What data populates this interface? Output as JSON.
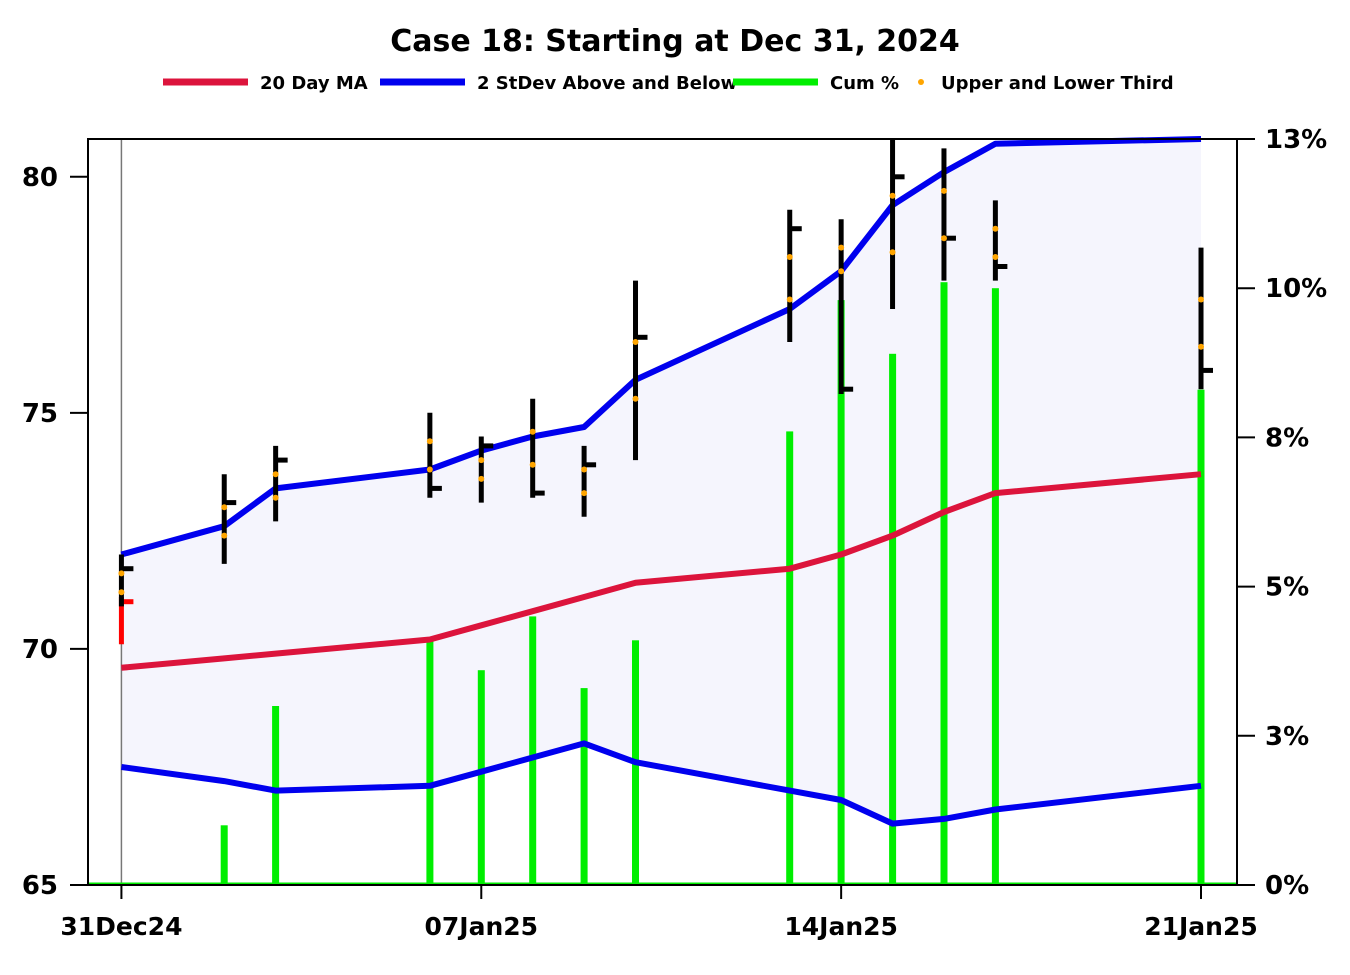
{
  "chart_data": {
    "type": "line",
    "title": "Case 18:  Starting at Dec 31, 2024",
    "legend": {
      "placement": "top-center",
      "entries": [
        {
          "key": "ma",
          "label": "20 Day MA",
          "color": "#dc143c",
          "kind": "line"
        },
        {
          "key": "band",
          "label": "2 StDev Above and Below",
          "color": "#0000ee",
          "kind": "line"
        },
        {
          "key": "cum",
          "label": "Cum %",
          "color": "#00ee00",
          "kind": "line"
        },
        {
          "key": "thirds",
          "label": "Upper and Lower Third",
          "color": "#ffa500",
          "kind": "dot"
        }
      ]
    },
    "x_ticks": [
      {
        "day": 0,
        "label": "31Dec24"
      },
      {
        "day": 7,
        "label": "07Jan25"
      },
      {
        "day": 14,
        "label": "14Jan25"
      },
      {
        "day": 21,
        "label": "21Jan25"
      }
    ],
    "x_range": [
      -0.65,
      21.7
    ],
    "y_left": {
      "range": [
        65,
        80.8
      ],
      "ticks": [
        "65",
        "70",
        "75",
        "80"
      ]
    },
    "y_right": {
      "range": [
        0,
        12.5
      ],
      "ticks": [
        "0%",
        "3%",
        "5%",
        "8%",
        "10%",
        "13%"
      ],
      "tick_values": [
        0,
        2.5,
        5,
        7.5,
        10,
        12.5
      ]
    },
    "grid": false,
    "start_marker_day": 0,
    "series": [
      {
        "name": "20 Day MA",
        "key": "ma",
        "color": "#dc143c",
        "x": [
          0,
          2,
          3,
          6,
          7,
          8,
          9,
          10,
          13,
          14,
          15,
          16,
          17,
          21
        ],
        "values": [
          69.6,
          69.8,
          69.9,
          70.2,
          70.5,
          70.8,
          71.1,
          71.4,
          71.7,
          72.0,
          72.4,
          72.9,
          73.3,
          73.7
        ]
      },
      {
        "name": "2 StDev Above and Below",
        "key": "upper",
        "color": "#0000ee",
        "x": [
          0,
          2,
          3,
          6,
          7,
          8,
          9,
          10,
          13,
          14,
          15,
          16,
          17,
          21
        ],
        "values": [
          72.0,
          72.6,
          73.4,
          73.8,
          74.2,
          74.5,
          74.7,
          75.7,
          77.2,
          78.0,
          79.4,
          80.1,
          80.7,
          80.8
        ]
      },
      {
        "name": "2 StDev Above and Below",
        "key": "lower",
        "color": "#0000ee",
        "x": [
          0,
          2,
          3,
          6,
          7,
          8,
          9,
          10,
          13,
          14,
          15,
          16,
          17,
          21
        ],
        "values": [
          67.5,
          67.2,
          67.0,
          67.1,
          67.4,
          67.7,
          68.0,
          67.6,
          67.0,
          66.8,
          66.3,
          66.4,
          66.6,
          67.1
        ]
      },
      {
        "name": "Cum %",
        "key": "cum",
        "color": "#00ee00",
        "x": [
          0,
          2,
          3,
          6,
          7,
          8,
          9,
          10,
          13,
          14,
          15,
          16,
          17,
          21
        ],
        "values": [
          0,
          1.0,
          3.0,
          4.1,
          3.6,
          4.5,
          3.3,
          4.1,
          7.6,
          9.8,
          8.9,
          10.1,
          10.0,
          8.3
        ]
      }
    ],
    "ohlc": [
      {
        "day": 0,
        "color": "#ff0000",
        "high": 71.1,
        "low": 70.1,
        "close": 71.0
      },
      {
        "day": 0,
        "color": "#000000",
        "high": 72.0,
        "low": 70.9,
        "close": 71.7
      },
      {
        "day": 2,
        "color": "#000000",
        "high": 73.7,
        "low": 71.8,
        "close": 73.1
      },
      {
        "day": 3,
        "color": "#000000",
        "high": 74.3,
        "low": 72.7,
        "close": 74.0
      },
      {
        "day": 6,
        "color": "#000000",
        "high": 75.0,
        "low": 73.2,
        "close": 73.4
      },
      {
        "day": 7,
        "color": "#000000",
        "high": 74.5,
        "low": 73.1,
        "close": 74.3
      },
      {
        "day": 8,
        "color": "#000000",
        "high": 75.3,
        "low": 73.2,
        "close": 73.3
      },
      {
        "day": 9,
        "color": "#000000",
        "high": 74.3,
        "low": 72.8,
        "close": 73.9
      },
      {
        "day": 10,
        "color": "#000000",
        "high": 77.8,
        "low": 74.0,
        "close": 76.6
      },
      {
        "day": 13,
        "color": "#000000",
        "high": 79.3,
        "low": 76.5,
        "close": 78.9
      },
      {
        "day": 14,
        "color": "#000000",
        "high": 79.1,
        "low": 75.4,
        "close": 75.5
      },
      {
        "day": 15,
        "color": "#000000",
        "high": 80.8,
        "low": 77.2,
        "close": 80.0
      },
      {
        "day": 16,
        "color": "#000000",
        "high": 80.6,
        "low": 77.8,
        "close": 78.7
      },
      {
        "day": 17,
        "color": "#000000",
        "high": 79.5,
        "low": 77.8,
        "close": 78.1
      },
      {
        "day": 21,
        "color": "#000000",
        "high": 78.5,
        "low": 75.5,
        "close": 75.9
      }
    ],
    "thirds": [
      {
        "day": 0,
        "upper": 71.6,
        "lower": 71.2
      },
      {
        "day": 2,
        "upper": 73.0,
        "lower": 72.4
      },
      {
        "day": 3,
        "upper": 73.7,
        "lower": 73.2
      },
      {
        "day": 6,
        "upper": 74.4,
        "lower": 73.8
      },
      {
        "day": 7,
        "upper": 74.0,
        "lower": 73.6
      },
      {
        "day": 8,
        "upper": 74.6,
        "lower": 73.9
      },
      {
        "day": 9,
        "upper": 73.8,
        "lower": 73.3
      },
      {
        "day": 10,
        "upper": 76.5,
        "lower": 75.3
      },
      {
        "day": 13,
        "upper": 78.3,
        "lower": 77.4
      },
      {
        "day": 14,
        "upper": 78.5,
        "lower": 78.0
      },
      {
        "day": 15,
        "upper": 79.6,
        "lower": 78.4
      },
      {
        "day": 16,
        "upper": 79.7,
        "lower": 78.7
      },
      {
        "day": 17,
        "upper": 78.9,
        "lower": 78.3
      },
      {
        "day": 21,
        "upper": 77.4,
        "lower": 76.4
      }
    ]
  }
}
